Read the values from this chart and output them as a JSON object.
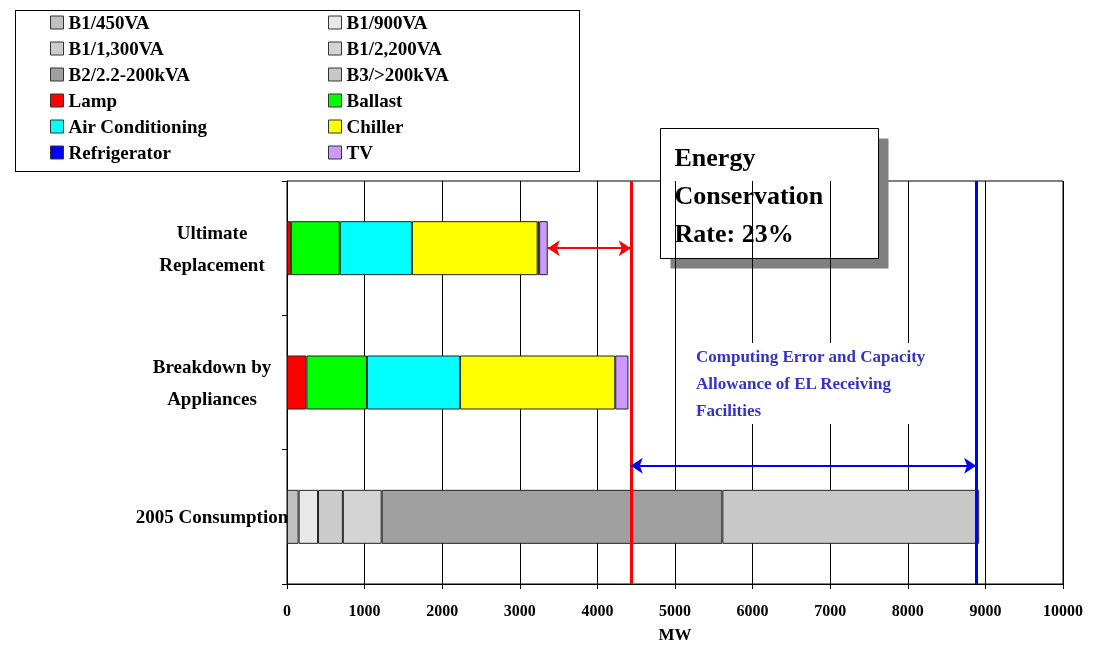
{
  "chart_data": {
    "type": "bar",
    "orientation": "horizontal",
    "stacked": true,
    "categories": [
      "Ultimate\nReplacement",
      "Breakdown by\nAppliances",
      "2005 Consumption"
    ],
    "series": [
      {
        "name": "B1/450VA",
        "color": "#c0c0c0",
        "values": [
          null,
          null,
          150
        ]
      },
      {
        "name": "B1/900VA",
        "color": "#e8e8e8",
        "values": [
          null,
          null,
          250
        ]
      },
      {
        "name": "B1/1,300VA",
        "color": "#cccccc",
        "values": [
          null,
          null,
          320
        ]
      },
      {
        "name": "B1/2,200VA",
        "color": "#d4d4d4",
        "values": [
          null,
          null,
          500
        ]
      },
      {
        "name": "B2/2.2-200kVA",
        "color": "#a0a0a0",
        "values": [
          null,
          null,
          4390
        ]
      },
      {
        "name": "B3/>200kVA",
        "color": "#c8c8c8",
        "values": [
          null,
          null,
          3310
        ]
      },
      {
        "name": "Lamp",
        "color": "#ff0000",
        "values": [
          50,
          250,
          null
        ]
      },
      {
        "name": "Ballast",
        "color": "#00ff00",
        "values": [
          630,
          780,
          null
        ]
      },
      {
        "name": "Air Conditioning",
        "color": "#00ffff",
        "values": [
          930,
          1200,
          null
        ]
      },
      {
        "name": "Chiller",
        "color": "#ffff00",
        "values": [
          1620,
          2000,
          null
        ]
      },
      {
        "name": "Refrigerator",
        "color": "#0000ff",
        "values": [
          20,
          null,
          null
        ]
      },
      {
        "name": "TV",
        "color": "#cc99ff",
        "values": [
          110,
          170,
          null
        ]
      }
    ],
    "xlabel": "MW",
    "xlim": [
      0,
      10000
    ],
    "xticks": [
      0,
      1000,
      2000,
      3000,
      4000,
      5000,
      6000,
      7000,
      8000,
      9000,
      10000
    ],
    "grid": "x",
    "legend": "top left",
    "ref_lines": [
      {
        "axis": "x",
        "value": 4430,
        "color": "#ff0000"
      },
      {
        "axis": "x",
        "value": 8880,
        "color": "#0000ff"
      }
    ],
    "annotations": [
      "Energy\nConservation\nRate: 23%",
      "Computing Error and Capacity\nAllowance of EL Receiving\nFacilities"
    ]
  }
}
